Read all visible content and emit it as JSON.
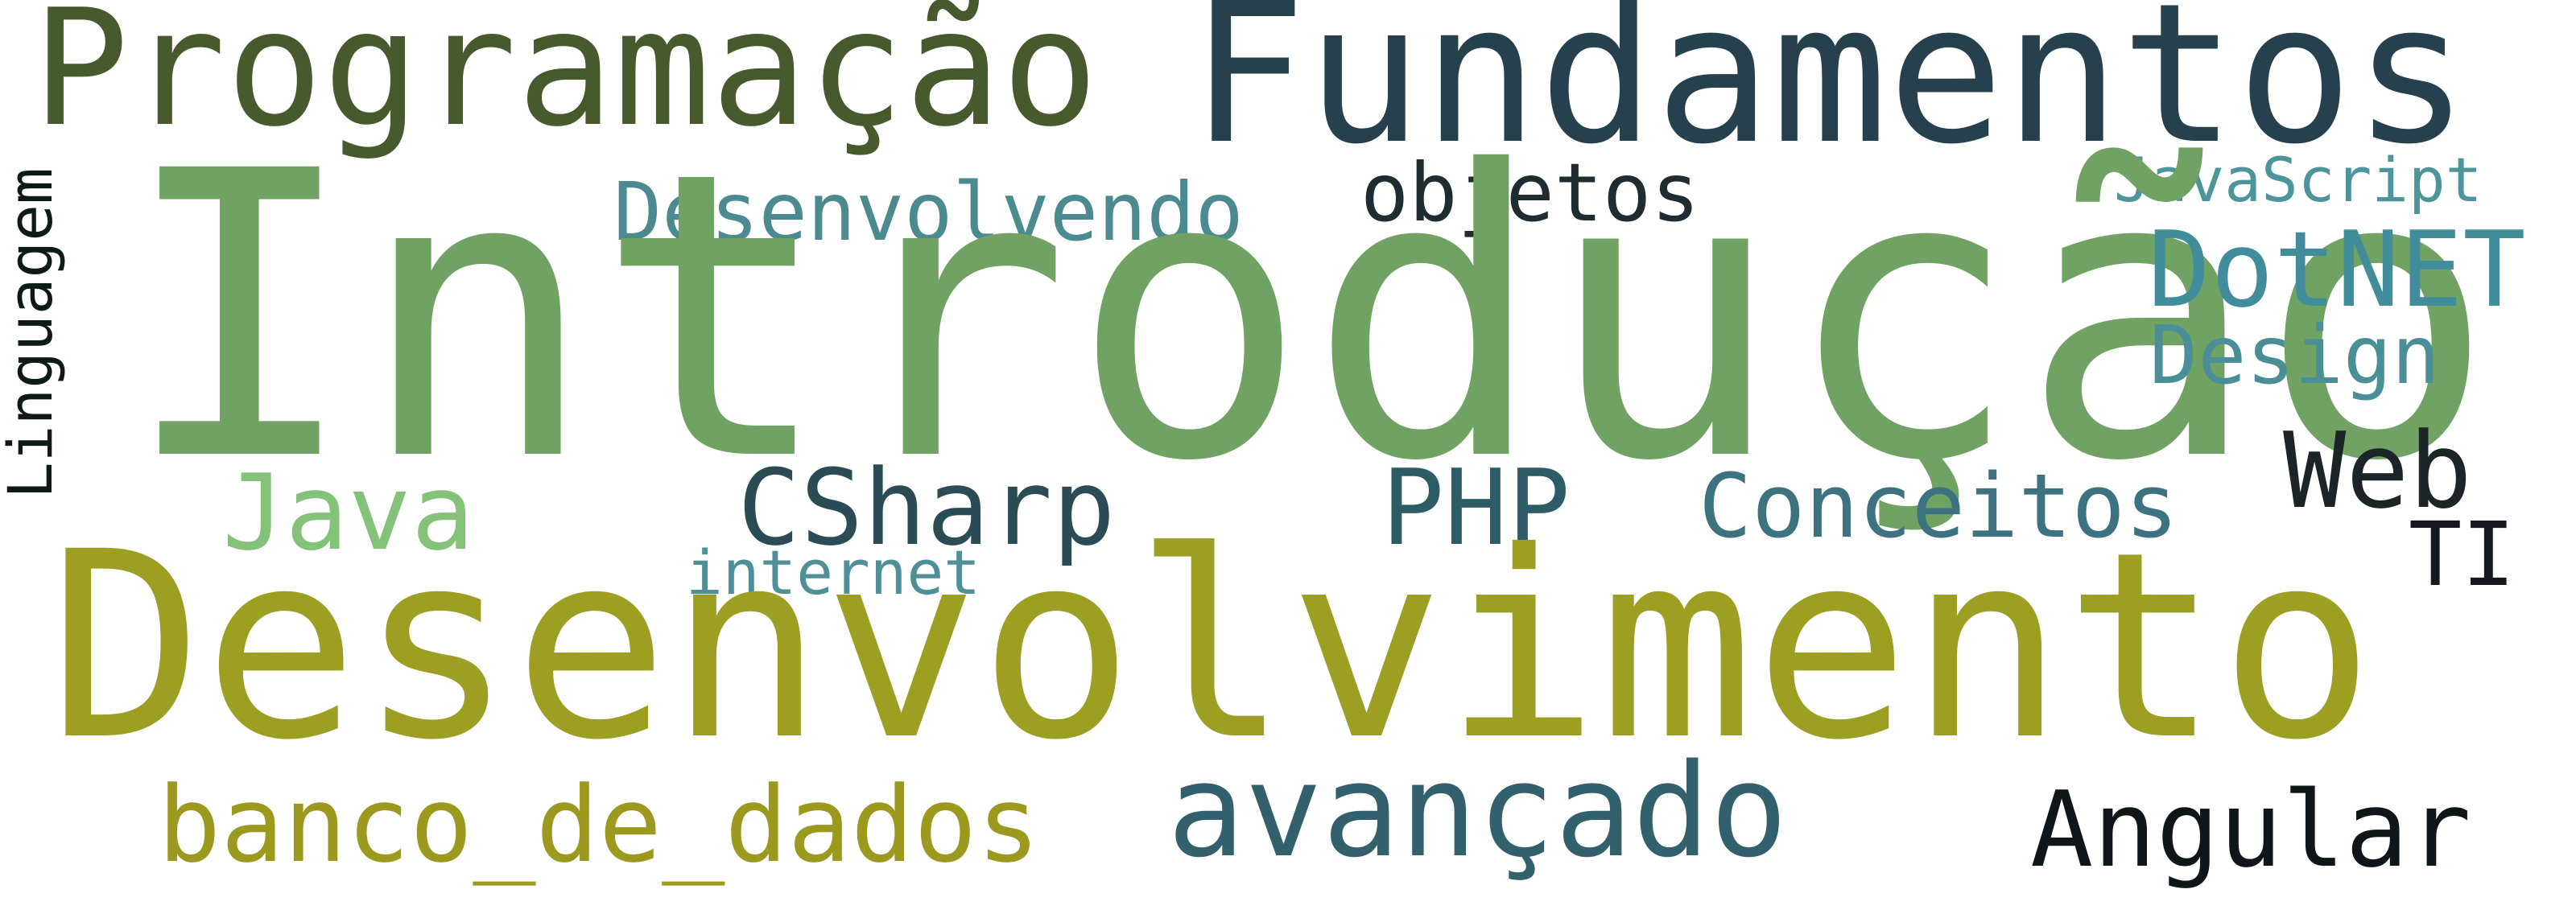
{
  "words": [
    {
      "id": "programacao",
      "text": "Programação",
      "color": "#475a2e"
    },
    {
      "id": "fundamentos",
      "text": "Fundamentos",
      "color": "#26404d"
    },
    {
      "id": "linguagem",
      "text": "Linguagem",
      "color": "#0e1a17"
    },
    {
      "id": "desenvolvendo",
      "text": "Desenvolvendo",
      "color": "#4b8a8f"
    },
    {
      "id": "objetos",
      "text": "objetos",
      "color": "#1f2c31"
    },
    {
      "id": "javascript",
      "text": "JavaScript",
      "color": "#4e949b"
    },
    {
      "id": "introducao",
      "text": "Introdução",
      "color": "#70a263"
    },
    {
      "id": "dotnet",
      "text": "DotNET",
      "color": "#418d9b"
    },
    {
      "id": "design",
      "text": "Design",
      "color": "#4a8e98"
    },
    {
      "id": "java",
      "text": "Java",
      "color": "#84c179"
    },
    {
      "id": "csharp",
      "text": "CSharp",
      "color": "#2c4c55"
    },
    {
      "id": "php",
      "text": "PHP",
      "color": "#2d5c66"
    },
    {
      "id": "conceitos",
      "text": "Conceitos",
      "color": "#3d7280"
    },
    {
      "id": "web",
      "text": "Web",
      "color": "#1b2427"
    },
    {
      "id": "ti",
      "text": "TI",
      "color": "#13191e"
    },
    {
      "id": "internet",
      "text": "internet",
      "color": "#4f8f97"
    },
    {
      "id": "desenvolvimento",
      "text": "Desenvolvimento",
      "color": "#9c9f22"
    },
    {
      "id": "banco",
      "text": "banco_de_dados",
      "color": "#9c9a1e"
    },
    {
      "id": "avancado",
      "text": "avançado",
      "color": "#32606d"
    },
    {
      "id": "angular",
      "text": "Angular",
      "color": "#0f1619"
    }
  ]
}
